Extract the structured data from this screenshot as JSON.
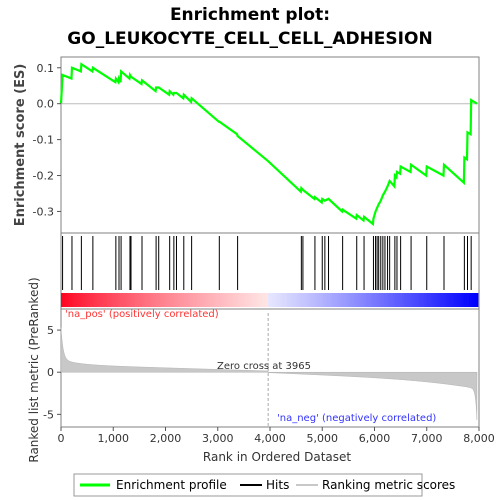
{
  "chart_data": {
    "type": "line",
    "title_line1": "Enrichment plot:",
    "title_line2": "GO_LEUKOCYTE_CELL_CELL_ADHESION",
    "ylabel_top": "Enrichment score (ES)",
    "ylabel_bottom": "Ranked list metric (PreRanked)",
    "xlabel": "Rank in Ordered Dataset",
    "x_ticks": [
      "0",
      "1,000",
      "2,000",
      "3,000",
      "4,000",
      "5,000",
      "6,000",
      "7,000",
      "8,000"
    ],
    "x_tick_values": [
      0,
      1000,
      2000,
      3000,
      4000,
      5000,
      6000,
      7000,
      8000
    ],
    "es_ticks": [
      "0.1",
      "0.0",
      "-0.1",
      "-0.2",
      "-0.3"
    ],
    "es_tick_values": [
      0.1,
      0.0,
      -0.1,
      -0.2,
      -0.3
    ],
    "metric_ticks": [
      "5",
      "0",
      "-5"
    ],
    "metric_tick_values": [
      5,
      0,
      -5
    ],
    "xlim": [
      0,
      8000
    ],
    "es_ylim": [
      -0.36,
      0.13
    ],
    "metric_ylim": [
      -6.5,
      7.5
    ],
    "n_genes": 7962,
    "zero_cross_label": "Zero cross at 3965",
    "zero_cross": 3965,
    "pos_label": "'na_pos' (positively correlated)",
    "neg_label": "'na_neg' (negatively correlated)",
    "legend": [
      "Enrichment profile",
      "Hits",
      "Ranking metric scores"
    ],
    "colors": {
      "profile": "#00ff00",
      "hits": "#000000",
      "metric": "#c8c8c8",
      "pos": "#ff0000",
      "neg": "#0000ff"
    },
    "hits": [
      30,
      210,
      390,
      610,
      1050,
      1110,
      1150,
      1320,
      1340,
      1550,
      1820,
      1870,
      2080,
      2160,
      2210,
      2350,
      2500,
      3030,
      3380,
      4600,
      4630,
      4860,
      5000,
      5050,
      5120,
      5390,
      5660,
      5800,
      5980,
      6020,
      6050,
      6080,
      6120,
      6160,
      6200,
      6250,
      6290,
      6390,
      6430,
      6500,
      6700,
      7000,
      7330,
      7720,
      7780,
      7850
    ],
    "es_profile": [
      [
        0,
        0.0
      ],
      [
        30,
        0.08
      ],
      [
        200,
        0.07
      ],
      [
        210,
        0.1
      ],
      [
        380,
        0.09
      ],
      [
        390,
        0.11
      ],
      [
        600,
        0.09
      ],
      [
        610,
        0.1
      ],
      [
        1040,
        0.06
      ],
      [
        1050,
        0.07
      ],
      [
        1100,
        0.06
      ],
      [
        1110,
        0.07
      ],
      [
        1140,
        0.06
      ],
      [
        1150,
        0.09
      ],
      [
        1310,
        0.07
      ],
      [
        1320,
        0.08
      ],
      [
        1340,
        0.075
      ],
      [
        1540,
        0.055
      ],
      [
        1550,
        0.065
      ],
      [
        1810,
        0.035
      ],
      [
        1820,
        0.045
      ],
      [
        1870,
        0.045
      ],
      [
        2070,
        0.025
      ],
      [
        2080,
        0.035
      ],
      [
        2150,
        0.025
      ],
      [
        2160,
        0.03
      ],
      [
        2210,
        0.03
      ],
      [
        2340,
        0.015
      ],
      [
        2350,
        0.025
      ],
      [
        2490,
        0.005
      ],
      [
        2500,
        0.015
      ],
      [
        3020,
        -0.05
      ],
      [
        3030,
        -0.05
      ],
      [
        3370,
        -0.085
      ],
      [
        3380,
        -0.09
      ],
      [
        3965,
        -0.16
      ],
      [
        4590,
        -0.245
      ],
      [
        4600,
        -0.235
      ],
      [
        4630,
        -0.24
      ],
      [
        4850,
        -0.265
      ],
      [
        4860,
        -0.26
      ],
      [
        4990,
        -0.275
      ],
      [
        5000,
        -0.265
      ],
      [
        5050,
        -0.27
      ],
      [
        5120,
        -0.265
      ],
      [
        5380,
        -0.3
      ],
      [
        5390,
        -0.295
      ],
      [
        5650,
        -0.32
      ],
      [
        5660,
        -0.31
      ],
      [
        5790,
        -0.325
      ],
      [
        5800,
        -0.315
      ],
      [
        5970,
        -0.335
      ],
      [
        5980,
        -0.32
      ],
      [
        6020,
        -0.3
      ],
      [
        6050,
        -0.29
      ],
      [
        6080,
        -0.28
      ],
      [
        6120,
        -0.27
      ],
      [
        6160,
        -0.255
      ],
      [
        6200,
        -0.245
      ],
      [
        6250,
        -0.23
      ],
      [
        6290,
        -0.215
      ],
      [
        6380,
        -0.23
      ],
      [
        6390,
        -0.2
      ],
      [
        6420,
        -0.205
      ],
      [
        6430,
        -0.19
      ],
      [
        6490,
        -0.195
      ],
      [
        6500,
        -0.175
      ],
      [
        6690,
        -0.19
      ],
      [
        6700,
        -0.17
      ],
      [
        6990,
        -0.2
      ],
      [
        7000,
        -0.175
      ],
      [
        7320,
        -0.2
      ],
      [
        7330,
        -0.17
      ],
      [
        7710,
        -0.22
      ],
      [
        7720,
        -0.15
      ],
      [
        7770,
        -0.155
      ],
      [
        7780,
        -0.08
      ],
      [
        7840,
        -0.085
      ],
      [
        7850,
        0.01
      ],
      [
        7962,
        0.0
      ]
    ]
  }
}
